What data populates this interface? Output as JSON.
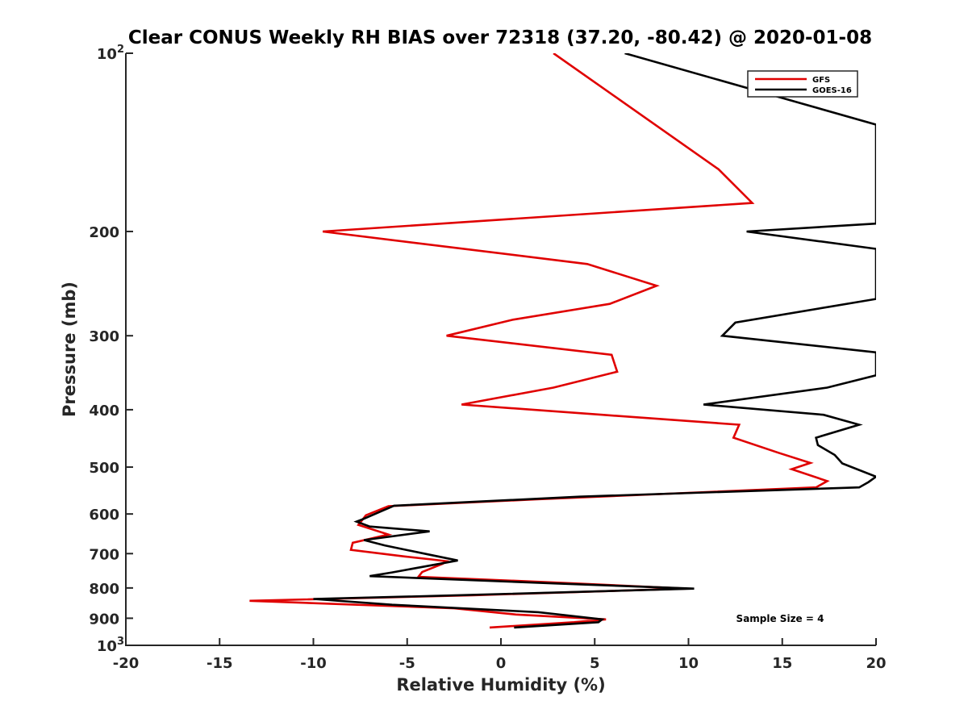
{
  "chart_data": {
    "type": "line",
    "title": "Clear CONUS Weekly RH BIAS over 72318 (37.20, -80.42) @ 2020-01-08",
    "xlabel": "Relative Humidity (%)",
    "ylabel": "Pressure (mb)",
    "xlim": [
      -20,
      20
    ],
    "ylim": [
      100,
      1000
    ],
    "y_scale": "log",
    "y_reversed": true,
    "grid": false,
    "legend_position": "top-right",
    "x_ticks": [
      "-20",
      "-15",
      "-10",
      "-5",
      "0",
      "5",
      "10",
      "15",
      "20"
    ],
    "y_ticks": [
      {
        "base": "10",
        "exp": "2"
      },
      {
        "base": "200",
        "exp": ""
      },
      {
        "base": "300",
        "exp": ""
      },
      {
        "base": "400",
        "exp": ""
      },
      {
        "base": "500",
        "exp": ""
      },
      {
        "base": "600",
        "exp": ""
      },
      {
        "base": "700",
        "exp": ""
      },
      {
        "base": "800",
        "exp": ""
      },
      {
        "base": "900",
        "exp": ""
      },
      {
        "base": "10",
        "exp": "3"
      }
    ],
    "annotation": "Sample Size = 4",
    "series": [
      {
        "name": "GFS",
        "color": "#e00000",
        "points": [
          [
            2.8,
            100
          ],
          [
            11.6,
            157
          ],
          [
            13.4,
            179
          ],
          [
            -9.5,
            200
          ],
          [
            4.6,
            227
          ],
          [
            8.3,
            247
          ],
          [
            5.8,
            265
          ],
          [
            0.6,
            282
          ],
          [
            -2.9,
            300
          ],
          [
            5.9,
            323
          ],
          [
            6.2,
            345
          ],
          [
            2.8,
            367
          ],
          [
            -2.1,
            392
          ],
          [
            5.4,
            408
          ],
          [
            12.7,
            424
          ],
          [
            12.4,
            446
          ],
          [
            14.8,
            473
          ],
          [
            16.5,
            492
          ],
          [
            15.5,
            504
          ],
          [
            17.4,
            528
          ],
          [
            16.8,
            541
          ],
          [
            1.8,
            567
          ],
          [
            -6.0,
            582
          ],
          [
            -7.2,
            603
          ],
          [
            -7.6,
            626
          ],
          [
            -6.0,
            650
          ],
          [
            -7.9,
            671
          ],
          [
            -8.0,
            690
          ],
          [
            -5.1,
            708
          ],
          [
            -3.7,
            716
          ],
          [
            -2.9,
            721
          ],
          [
            -3.1,
            728
          ],
          [
            -4.2,
            752
          ],
          [
            -4.4,
            766
          ],
          [
            2.8,
            783
          ],
          [
            9.9,
            802
          ],
          [
            -1.5,
            823
          ],
          [
            -13.4,
            841
          ],
          [
            -2.5,
            866
          ],
          [
            0.8,
            887
          ],
          [
            5.6,
            904
          ],
          [
            3.9,
            914
          ],
          [
            -0.6,
            933
          ]
        ]
      },
      {
        "name": "GOES-16",
        "color": "#000000",
        "points": [
          [
            6.6,
            100
          ],
          [
            20,
            132
          ],
          [
            20,
            194
          ],
          [
            13.1,
            200
          ],
          [
            20,
            214
          ],
          [
            20,
            260
          ],
          [
            12.5,
            285
          ],
          [
            11.8,
            300
          ],
          [
            20,
            320
          ],
          [
            20,
            350
          ],
          [
            17.4,
            367
          ],
          [
            10.8,
            392
          ],
          [
            17.2,
            408
          ],
          [
            19.1,
            424
          ],
          [
            16.8,
            446
          ],
          [
            16.9,
            459
          ],
          [
            17.8,
            477
          ],
          [
            18.2,
            493
          ],
          [
            20,
            519
          ],
          [
            19.6,
            530
          ],
          [
            19.1,
            541
          ],
          [
            4.2,
            561
          ],
          [
            -5.7,
            581
          ],
          [
            -7.4,
            613
          ],
          [
            -7.7,
            618
          ],
          [
            -7.0,
            630
          ],
          [
            -3.8,
            642
          ],
          [
            -7.3,
            664
          ],
          [
            -6.2,
            678
          ],
          [
            -3.9,
            702
          ],
          [
            -2.3,
            719
          ],
          [
            -5.8,
            753
          ],
          [
            -7.0,
            764
          ],
          [
            2.8,
            786
          ],
          [
            10.3,
            802
          ],
          [
            -3.5,
            825
          ],
          [
            -10.0,
            835
          ],
          [
            -5.8,
            854
          ],
          [
            2.0,
            879
          ],
          [
            5.4,
            904
          ],
          [
            5.2,
            914
          ],
          [
            0.7,
            933
          ]
        ]
      }
    ]
  }
}
